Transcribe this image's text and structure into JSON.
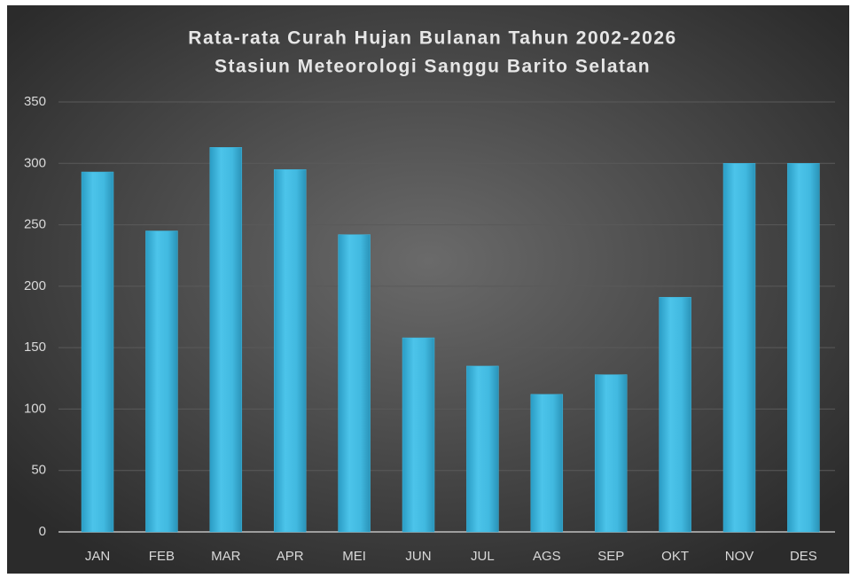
{
  "chart_data": {
    "type": "bar",
    "title": "Rata-rata Curah Hujan Bulanan Tahun 2002-2026",
    "subtitle": "Stasiun Meteorologi Sanggu Barito Selatan",
    "categories": [
      "JAN",
      "FEB",
      "MAR",
      "APR",
      "MEI",
      "JUN",
      "JUL",
      "AGS",
      "SEP",
      "OKT",
      "NOV",
      "DES"
    ],
    "values": [
      293,
      245,
      313,
      295,
      242,
      158,
      135,
      112,
      128,
      191,
      300,
      300
    ],
    "color": "#41b9e0",
    "ylim": [
      0,
      350
    ],
    "yticks": [
      0,
      50,
      100,
      150,
      200,
      250,
      300,
      350
    ],
    "grid": true
  }
}
